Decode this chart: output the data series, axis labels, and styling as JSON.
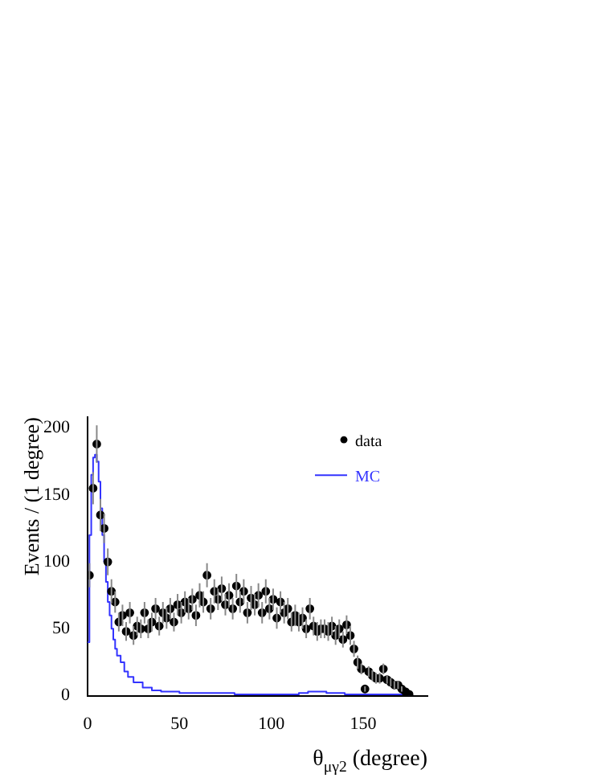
{
  "chart_data": {
    "type": "scatter",
    "xlabel": "θ$_{μγ2}$ (degree)",
    "ylabel": "Events / (1 degree)",
    "xlim": [
      0,
      185
    ],
    "xticks": [
      0,
      50,
      100,
      150
    ],
    "ylim": [
      0,
      208
    ],
    "yticks": [
      0,
      50,
      100,
      150,
      200
    ],
    "grid": false,
    "legend": "top right",
    "marker": "circle",
    "series": [
      {
        "name": "data",
        "color": "#000000",
        "x": [
          1,
          3,
          5,
          7,
          9,
          11,
          13,
          15,
          17,
          19,
          21,
          23,
          25,
          27,
          29,
          31,
          33,
          35,
          37,
          39,
          41,
          43,
          45,
          47,
          49,
          51,
          53,
          55,
          57,
          59,
          61,
          63,
          65,
          67,
          69,
          71,
          73,
          75,
          77,
          79,
          81,
          83,
          85,
          87,
          89,
          91,
          93,
          95,
          97,
          99,
          101,
          103,
          105,
          107,
          109,
          111,
          113,
          115,
          117,
          119,
          121,
          123,
          125,
          127,
          129,
          131,
          133,
          135,
          137,
          139,
          141,
          143,
          145,
          147,
          149,
          151,
          153,
          155,
          157,
          159,
          161,
          163,
          165,
          167,
          169,
          171,
          173,
          175
        ],
        "values": [
          90,
          155,
          188,
          135,
          125,
          100,
          78,
          70,
          55,
          60,
          48,
          62,
          45,
          52,
          50,
          62,
          50,
          55,
          65,
          52,
          62,
          58,
          65,
          55,
          68,
          62,
          70,
          65,
          72,
          60,
          75,
          70,
          90,
          65,
          78,
          72,
          80,
          68,
          75,
          65,
          82,
          70,
          78,
          62,
          73,
          68,
          75,
          62,
          78,
          65,
          72,
          58,
          70,
          62,
          65,
          55,
          60,
          55,
          58,
          50,
          65,
          52,
          48,
          50,
          50,
          48,
          52,
          45,
          50,
          42,
          53,
          45,
          35,
          25,
          20,
          5,
          18,
          15,
          13,
          13,
          20,
          12,
          10,
          8,
          8,
          5,
          3,
          1
        ],
        "errors": [
          9,
          12,
          14,
          12,
          11,
          10,
          9,
          8,
          7,
          8,
          7,
          8,
          7,
          7,
          7,
          8,
          7,
          7,
          8,
          7,
          8,
          8,
          8,
          7,
          8,
          8,
          8,
          8,
          8,
          8,
          9,
          8,
          9,
          8,
          9,
          8,
          9,
          8,
          9,
          8,
          9,
          8,
          9,
          8,
          9,
          8,
          9,
          8,
          9,
          8,
          8,
          8,
          8,
          8,
          8,
          7,
          8,
          7,
          8,
          7,
          8,
          7,
          7,
          7,
          7,
          7,
          7,
          7,
          7,
          6,
          7,
          7,
          6,
          5,
          4,
          2,
          4,
          4,
          4,
          4,
          4,
          3,
          3,
          3,
          3,
          2,
          null,
          null
        ]
      },
      {
        "name": "MC",
        "type": "step",
        "color": "#3333ff",
        "marker": "none",
        "line_style": "solid",
        "x": [
          0,
          1,
          2,
          3,
          4,
          5,
          6,
          7,
          8,
          9,
          10,
          11,
          12,
          13,
          14,
          15,
          16,
          18,
          20,
          22,
          25,
          30,
          35,
          40,
          50,
          60,
          80,
          100,
          115,
          120,
          125,
          130,
          140,
          150,
          175
        ],
        "values": [
          40,
          120,
          165,
          178,
          180,
          175,
          160,
          140,
          120,
          100,
          85,
          70,
          60,
          50,
          42,
          35,
          30,
          25,
          18,
          14,
          10,
          6,
          4,
          3,
          2,
          2,
          1,
          1,
          2,
          3,
          3,
          2,
          1,
          1,
          0
        ]
      }
    ]
  }
}
